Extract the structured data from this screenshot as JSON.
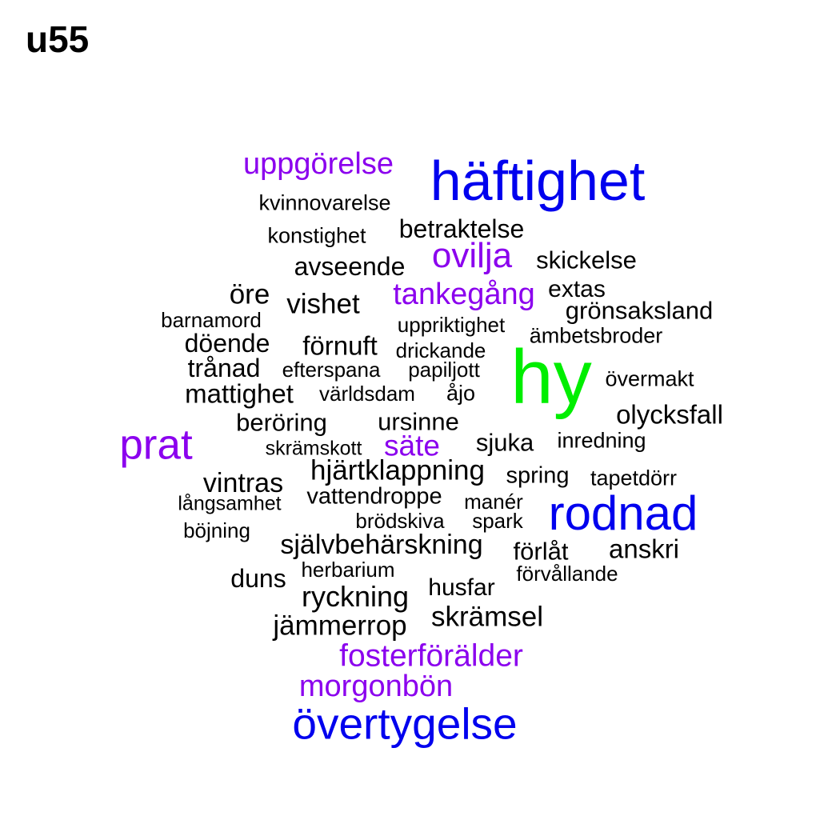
{
  "title": "u55",
  "colors": {
    "black": "#000000",
    "purple": "#8B00EE",
    "blue": "#0000EE",
    "green": "#00EE00"
  },
  "words": [
    {
      "text": "uppgörelse",
      "color": "purple"
    },
    {
      "text": "häftighet",
      "color": "blue"
    },
    {
      "text": "kvinnovarelse",
      "color": "black"
    },
    {
      "text": "betraktelse",
      "color": "black"
    },
    {
      "text": "konstighet",
      "color": "black"
    },
    {
      "text": "ovilja",
      "color": "purple"
    },
    {
      "text": "skickelse",
      "color": "black"
    },
    {
      "text": "avseende",
      "color": "black"
    },
    {
      "text": "tankegång",
      "color": "purple"
    },
    {
      "text": "extas",
      "color": "black"
    },
    {
      "text": "öre",
      "color": "black"
    },
    {
      "text": "vishet",
      "color": "black"
    },
    {
      "text": "grönsaksland",
      "color": "black"
    },
    {
      "text": "barnamord",
      "color": "black"
    },
    {
      "text": "uppriktighet",
      "color": "black"
    },
    {
      "text": "ämbetsbroder",
      "color": "black"
    },
    {
      "text": "döende",
      "color": "black"
    },
    {
      "text": "förnuft",
      "color": "black"
    },
    {
      "text": "drickande",
      "color": "black"
    },
    {
      "text": "hy",
      "color": "green"
    },
    {
      "text": "trånad",
      "color": "black"
    },
    {
      "text": "efterspana",
      "color": "black"
    },
    {
      "text": "papiljott",
      "color": "black"
    },
    {
      "text": "övermakt",
      "color": "black"
    },
    {
      "text": "mattighet",
      "color": "black"
    },
    {
      "text": "världsdam",
      "color": "black"
    },
    {
      "text": "åjo",
      "color": "black"
    },
    {
      "text": "olycksfall",
      "color": "black"
    },
    {
      "text": "beröring",
      "color": "black"
    },
    {
      "text": "ursinne",
      "color": "black"
    },
    {
      "text": "prat",
      "color": "purple"
    },
    {
      "text": "säte",
      "color": "purple"
    },
    {
      "text": "sjuka",
      "color": "black"
    },
    {
      "text": "inredning",
      "color": "black"
    },
    {
      "text": "skrämskott",
      "color": "black"
    },
    {
      "text": "hjärtklappning",
      "color": "black"
    },
    {
      "text": "spring",
      "color": "black"
    },
    {
      "text": "tapetdörr",
      "color": "black"
    },
    {
      "text": "vintras",
      "color": "black"
    },
    {
      "text": "vattendroppe",
      "color": "black"
    },
    {
      "text": "långsamhet",
      "color": "black"
    },
    {
      "text": "manér",
      "color": "black"
    },
    {
      "text": "rodnad",
      "color": "blue"
    },
    {
      "text": "brödskiva",
      "color": "black"
    },
    {
      "text": "spark",
      "color": "black"
    },
    {
      "text": "böjning",
      "color": "black"
    },
    {
      "text": "självbehärskning",
      "color": "black"
    },
    {
      "text": "förlåt",
      "color": "black"
    },
    {
      "text": "anskri",
      "color": "black"
    },
    {
      "text": "herbarium",
      "color": "black"
    },
    {
      "text": "förvållande",
      "color": "black"
    },
    {
      "text": "duns",
      "color": "black"
    },
    {
      "text": "ryckning",
      "color": "black"
    },
    {
      "text": "husfar",
      "color": "black"
    },
    {
      "text": "skrämsel",
      "color": "black"
    },
    {
      "text": "jämmerrop",
      "color": "black"
    },
    {
      "text": "fosterförälder",
      "color": "purple"
    },
    {
      "text": "morgonbön",
      "color": "purple"
    },
    {
      "text": "övertygelse",
      "color": "blue"
    }
  ]
}
